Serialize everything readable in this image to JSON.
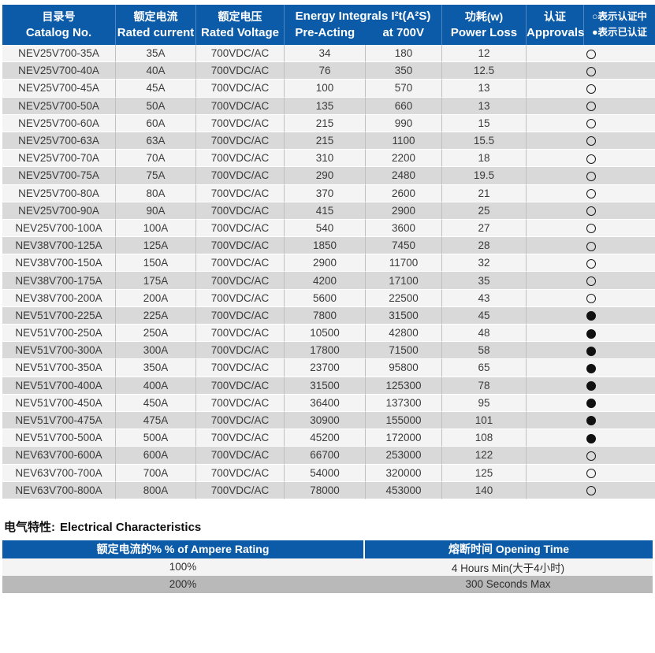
{
  "colors": {
    "header_blue": "#0c5ba8",
    "header_separator_blue": "#4e86c4",
    "row_light": "#f4f4f4",
    "row_grey": "#d9d9d9",
    "bottom_dark_row_grey": "#b9b9b9",
    "column_border_grey": "#c0c0c0",
    "body_text": "#3b3b3b"
  },
  "main_table": {
    "header": {
      "catalog": {
        "zh": "目录号",
        "en": "Catalog No."
      },
      "current": {
        "zh": "额定电流",
        "en": "Rated current"
      },
      "voltage": {
        "zh": "额定电压",
        "en": "Rated Voltage"
      },
      "energy": {
        "title": "Energy Integrals I²t(A²S)",
        "sub1": "Pre-Acting",
        "sub2": "at 700V"
      },
      "power": {
        "zh": "功耗(w)",
        "en": "Power Loss"
      },
      "approvals": {
        "zh": "认证",
        "en": "Approvals"
      },
      "legend": {
        "line1": "○表示认证中",
        "line2": "●表示已认证"
      }
    },
    "rows": [
      {
        "catalog": "NEV25V700-35A",
        "current": "35A",
        "voltage": "700VDC/AC",
        "pre_acting": "34",
        "at_700v": "180",
        "power_loss": "12",
        "approval": "certifying"
      },
      {
        "catalog": "NEV25V700-40A",
        "current": "40A",
        "voltage": "700VDC/AC",
        "pre_acting": "76",
        "at_700v": "350",
        "power_loss": "12.5",
        "approval": "certifying"
      },
      {
        "catalog": "NEV25V700-45A",
        "current": "45A",
        "voltage": "700VDC/AC",
        "pre_acting": "100",
        "at_700v": "570",
        "power_loss": "13",
        "approval": "certifying"
      },
      {
        "catalog": "NEV25V700-50A",
        "current": "50A",
        "voltage": "700VDC/AC",
        "pre_acting": "135",
        "at_700v": "660",
        "power_loss": "13",
        "approval": "certifying"
      },
      {
        "catalog": "NEV25V700-60A",
        "current": "60A",
        "voltage": "700VDC/AC",
        "pre_acting": "215",
        "at_700v": "990",
        "power_loss": "15",
        "approval": "certifying"
      },
      {
        "catalog": "NEV25V700-63A",
        "current": "63A",
        "voltage": "700VDC/AC",
        "pre_acting": "215",
        "at_700v": "1100",
        "power_loss": "15.5",
        "approval": "certifying"
      },
      {
        "catalog": "NEV25V700-70A",
        "current": "70A",
        "voltage": "700VDC/AC",
        "pre_acting": "310",
        "at_700v": "2200",
        "power_loss": "18",
        "approval": "certifying"
      },
      {
        "catalog": "NEV25V700-75A",
        "current": "75A",
        "voltage": "700VDC/AC",
        "pre_acting": "290",
        "at_700v": "2480",
        "power_loss": "19.5",
        "approval": "certifying"
      },
      {
        "catalog": "NEV25V700-80A",
        "current": "80A",
        "voltage": "700VDC/AC",
        "pre_acting": "370",
        "at_700v": "2600",
        "power_loss": "21",
        "approval": "certifying"
      },
      {
        "catalog": "NEV25V700-90A",
        "current": "90A",
        "voltage": "700VDC/AC",
        "pre_acting": "415",
        "at_700v": "2900",
        "power_loss": "25",
        "approval": "certifying"
      },
      {
        "catalog": "NEV25V700-100A",
        "current": "100A",
        "voltage": "700VDC/AC",
        "pre_acting": "540",
        "at_700v": "3600",
        "power_loss": "27",
        "approval": "certifying"
      },
      {
        "catalog": "NEV38V700-125A",
        "current": "125A",
        "voltage": "700VDC/AC",
        "pre_acting": "1850",
        "at_700v": "7450",
        "power_loss": "28",
        "approval": "certifying"
      },
      {
        "catalog": "NEV38V700-150A",
        "current": "150A",
        "voltage": "700VDC/AC",
        "pre_acting": "2900",
        "at_700v": "11700",
        "power_loss": "32",
        "approval": "certifying"
      },
      {
        "catalog": "NEV38V700-175A",
        "current": "175A",
        "voltage": "700VDC/AC",
        "pre_acting": "4200",
        "at_700v": "17100",
        "power_loss": "35",
        "approval": "certifying"
      },
      {
        "catalog": "NEV38V700-200A",
        "current": "200A",
        "voltage": "700VDC/AC",
        "pre_acting": "5600",
        "at_700v": "22500",
        "power_loss": "43",
        "approval": "certifying"
      },
      {
        "catalog": "NEV51V700-225A",
        "current": "225A",
        "voltage": "700VDC/AC",
        "pre_acting": "7800",
        "at_700v": "31500",
        "power_loss": "45",
        "approval": "certified"
      },
      {
        "catalog": "NEV51V700-250A",
        "current": "250A",
        "voltage": "700VDC/AC",
        "pre_acting": "10500",
        "at_700v": "42800",
        "power_loss": "48",
        "approval": "certified"
      },
      {
        "catalog": "NEV51V700-300A",
        "current": "300A",
        "voltage": "700VDC/AC",
        "pre_acting": "17800",
        "at_700v": "71500",
        "power_loss": "58",
        "approval": "certified"
      },
      {
        "catalog": "NEV51V700-350A",
        "current": "350A",
        "voltage": "700VDC/AC",
        "pre_acting": "23700",
        "at_700v": "95800",
        "power_loss": "65",
        "approval": "certified"
      },
      {
        "catalog": "NEV51V700-400A",
        "current": "400A",
        "voltage": "700VDC/AC",
        "pre_acting": "31500",
        "at_700v": "125300",
        "power_loss": "78",
        "approval": "certified"
      },
      {
        "catalog": "NEV51V700-450A",
        "current": "450A",
        "voltage": "700VDC/AC",
        "pre_acting": "36400",
        "at_700v": "137300",
        "power_loss": "95",
        "approval": "certified"
      },
      {
        "catalog": "NEV51V700-475A",
        "current": "475A",
        "voltage": "700VDC/AC",
        "pre_acting": "30900",
        "at_700v": "155000",
        "power_loss": "101",
        "approval": "certified"
      },
      {
        "catalog": "NEV51V700-500A",
        "current": "500A",
        "voltage": "700VDC/AC",
        "pre_acting": "45200",
        "at_700v": "172000",
        "power_loss": "108",
        "approval": "certified"
      },
      {
        "catalog": "NEV63V700-600A",
        "current": "600A",
        "voltage": "700VDC/AC",
        "pre_acting": "66700",
        "at_700v": "253000",
        "power_loss": "122",
        "approval": "certifying"
      },
      {
        "catalog": "NEV63V700-700A",
        "current": "700A",
        "voltage": "700VDC/AC",
        "pre_acting": "54000",
        "at_700v": "320000",
        "power_loss": "125",
        "approval": "certifying"
      },
      {
        "catalog": "NEV63V700-800A",
        "current": "800A",
        "voltage": "700VDC/AC",
        "pre_acting": "78000",
        "at_700v": "453000",
        "power_loss": "140",
        "approval": "certifying"
      }
    ]
  },
  "section2": {
    "heading_zh": "电气特性:",
    "heading_en": "Electrical Characteristics",
    "table": {
      "col1_header": "额定电流的%  % of Ampere Rating",
      "col2_header": "熔断时间  Opening Time",
      "rows": [
        {
          "percent": "100%",
          "time": "4 Hours Min(大于4小时)"
        },
        {
          "percent": "200%",
          "time": "300 Seconds Max"
        }
      ]
    }
  }
}
